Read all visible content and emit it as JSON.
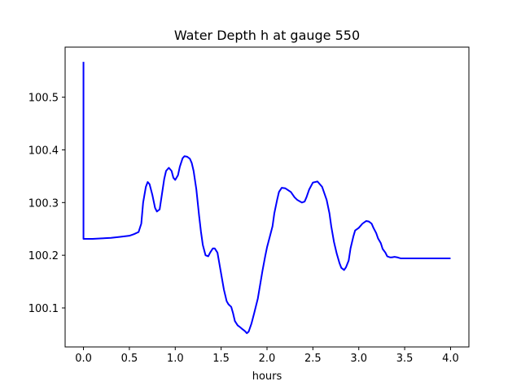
{
  "chart_data": {
    "type": "line",
    "title": "Water Depth h at gauge 550",
    "xlabel": "hours",
    "ylabel": "",
    "xlim": [
      -0.2,
      4.2
    ],
    "ylim": [
      100.026,
      100.595
    ],
    "xticks": [
      0.0,
      0.5,
      1.0,
      1.5,
      2.0,
      2.5,
      3.0,
      3.5,
      4.0
    ],
    "xtick_labels": [
      "0.0",
      "0.5",
      "1.0",
      "1.5",
      "2.0",
      "2.5",
      "3.0",
      "3.5",
      "4.0"
    ],
    "yticks": [
      100.1,
      100.2,
      100.3,
      100.4,
      100.5
    ],
    "ytick_labels": [
      "100.1",
      "100.2",
      "100.3",
      "100.4",
      "100.5"
    ],
    "grid": false,
    "series": [
      {
        "color": "#0000ff",
        "x": [
          0.0,
          0.0,
          0.0,
          0.1,
          0.2,
          0.3,
          0.4,
          0.5,
          0.55,
          0.6,
          0.63,
          0.65,
          0.68,
          0.7,
          0.72,
          0.75,
          0.78,
          0.8,
          0.83,
          0.85,
          0.88,
          0.9,
          0.93,
          0.96,
          0.98,
          1.0,
          1.03,
          1.05,
          1.08,
          1.1,
          1.13,
          1.16,
          1.18,
          1.2,
          1.23,
          1.26,
          1.28,
          1.3,
          1.33,
          1.36,
          1.38,
          1.41,
          1.43,
          1.46,
          1.48,
          1.51,
          1.53,
          1.56,
          1.58,
          1.61,
          1.63,
          1.65,
          1.68,
          1.71,
          1.73,
          1.76,
          1.78,
          1.8,
          1.83,
          1.86,
          1.9,
          1.95,
          1.98,
          2.0,
          2.03,
          2.06,
          2.08,
          2.11,
          2.13,
          2.16,
          2.2,
          2.26,
          2.3,
          2.33,
          2.36,
          2.38,
          2.41,
          2.43,
          2.46,
          2.5,
          2.55,
          2.6,
          2.65,
          2.68,
          2.7,
          2.73,
          2.76,
          2.79,
          2.81,
          2.84,
          2.86,
          2.89,
          2.91,
          2.94,
          2.96,
          3.0,
          3.04,
          3.08,
          3.11,
          3.14,
          3.16,
          3.19,
          3.21,
          3.24,
          3.26,
          3.29,
          3.31,
          3.34,
          3.36,
          3.39,
          3.42,
          3.44,
          3.46,
          3.49,
          3.52,
          3.55,
          3.6,
          3.65,
          3.7,
          3.74,
          3.78,
          3.82,
          3.86,
          3.9,
          3.95,
          4.0
        ],
        "y": [
          100.567,
          100.4,
          100.231,
          100.231,
          100.232,
          100.233,
          100.235,
          100.237,
          100.24,
          100.244,
          100.26,
          100.3,
          100.33,
          100.339,
          100.335,
          100.315,
          100.29,
          100.283,
          100.287,
          100.31,
          100.345,
          100.36,
          100.366,
          100.36,
          100.347,
          100.343,
          100.352,
          100.368,
          100.384,
          100.388,
          100.387,
          100.383,
          100.375,
          100.36,
          100.325,
          100.275,
          100.245,
          100.22,
          100.2,
          100.198,
          100.205,
          100.213,
          100.213,
          100.205,
          100.185,
          100.155,
          100.135,
          100.113,
          100.107,
          100.102,
          100.09,
          100.075,
          100.067,
          100.063,
          100.06,
          100.056,
          100.052,
          100.055,
          100.07,
          100.09,
          100.118,
          100.17,
          100.198,
          100.215,
          100.235,
          100.255,
          100.28,
          100.305,
          100.32,
          100.328,
          100.327,
          100.32,
          100.31,
          100.305,
          100.302,
          100.3,
          100.302,
          100.31,
          100.325,
          100.338,
          100.34,
          100.33,
          100.305,
          100.28,
          100.255,
          100.225,
          100.203,
          100.185,
          100.176,
          100.172,
          100.177,
          100.19,
          100.213,
          100.235,
          100.247,
          100.252,
          100.26,
          100.265,
          100.264,
          100.26,
          100.252,
          100.242,
          100.232,
          100.223,
          100.212,
          100.205,
          100.198,
          100.196,
          100.196,
          100.197,
          100.196,
          100.195,
          100.194,
          100.194,
          100.194,
          100.194,
          100.194,
          100.194,
          100.194,
          100.194,
          100.194,
          100.194,
          100.194,
          100.194,
          100.194,
          100.194
        ]
      }
    ]
  }
}
